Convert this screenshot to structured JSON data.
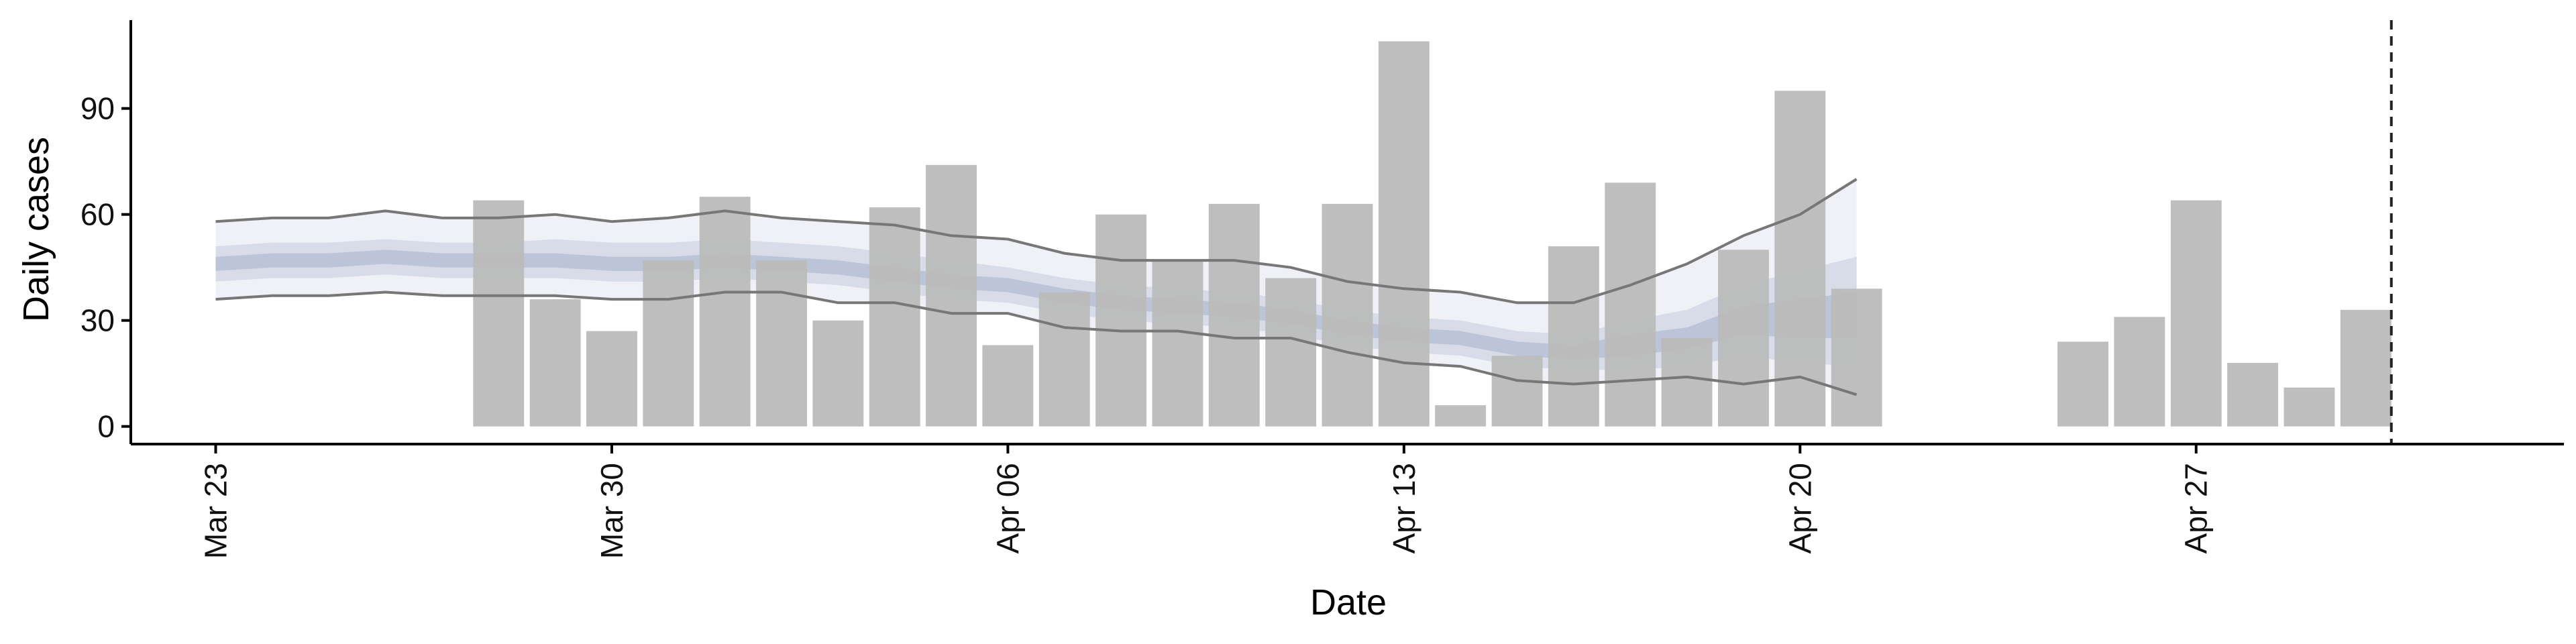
{
  "chart_data": {
    "type": "bar",
    "xlabel": "Date",
    "ylabel": "Daily cases",
    "ylim": [
      -5,
      115
    ],
    "yticks": [
      0,
      30,
      60,
      90
    ],
    "x_dates": [
      "2020-03-22",
      "2020-05-04"
    ],
    "xtick_labels": [
      {
        "date": "2020-03-23",
        "label": "Mar 23"
      },
      {
        "date": "2020-03-30",
        "label": "Mar 30"
      },
      {
        "date": "2020-04-06",
        "label": "Apr 06"
      },
      {
        "date": "2020-04-13",
        "label": "Apr 13"
      },
      {
        "date": "2020-04-20",
        "label": "Apr 20"
      },
      {
        "date": "2020-04-27",
        "label": "Apr 27"
      }
    ],
    "bars": {
      "color": "#bbbbbb",
      "dates": [
        "2020-03-28",
        "2020-03-29",
        "2020-03-30",
        "2020-03-31",
        "2020-04-01",
        "2020-04-02",
        "2020-04-03",
        "2020-04-04",
        "2020-04-05",
        "2020-04-06",
        "2020-04-07",
        "2020-04-08",
        "2020-04-09",
        "2020-04-10",
        "2020-04-11",
        "2020-04-12",
        "2020-04-13",
        "2020-04-14",
        "2020-04-15",
        "2020-04-16",
        "2020-04-17",
        "2020-04-18",
        "2020-04-19",
        "2020-04-20",
        "2020-04-21",
        "2020-04-25",
        "2020-04-26",
        "2020-04-27",
        "2020-04-28",
        "2020-04-29",
        "2020-04-30"
      ],
      "values": [
        64,
        36,
        27,
        47,
        65,
        47,
        30,
        62,
        74,
        23,
        38,
        60,
        47,
        63,
        42,
        63,
        109,
        6,
        20,
        51,
        69,
        25,
        50,
        95,
        39,
        24,
        31,
        64,
        18,
        11,
        33
      ]
    },
    "estimate": {
      "dates": [
        "2020-03-23",
        "2020-03-24",
        "2020-03-25",
        "2020-03-26",
        "2020-03-27",
        "2020-03-28",
        "2020-03-29",
        "2020-03-30",
        "2020-03-31",
        "2020-04-01",
        "2020-04-02",
        "2020-04-03",
        "2020-04-04",
        "2020-04-05",
        "2020-04-06",
        "2020-04-07",
        "2020-04-08",
        "2020-04-09",
        "2020-04-10",
        "2020-04-11",
        "2020-04-12",
        "2020-04-13",
        "2020-04-14",
        "2020-04-15",
        "2020-04-16",
        "2020-04-17",
        "2020-04-18",
        "2020-04-19",
        "2020-04-20",
        "2020-04-21"
      ],
      "upper90": [
        58,
        59,
        59,
        61,
        59,
        59,
        60,
        58,
        59,
        61,
        59,
        58,
        57,
        54,
        53,
        49,
        47,
        47,
        47,
        45,
        41,
        39,
        38,
        35,
        35,
        40,
        46,
        54,
        60,
        70
      ],
      "upper50": [
        51,
        52,
        52,
        53,
        52,
        52,
        53,
        52,
        52,
        53,
        52,
        51,
        49,
        47,
        45,
        42,
        40,
        39,
        38,
        36,
        33,
        31,
        30,
        27,
        26,
        30,
        33,
        40,
        44,
        48
      ],
      "upper20": [
        48,
        49,
        49,
        50,
        49,
        49,
        49,
        48,
        48,
        49,
        48,
        47,
        45,
        43,
        42,
        39,
        37,
        36,
        35,
        33,
        30,
        28,
        27,
        24,
        23,
        26,
        28,
        34,
        36,
        38
      ],
      "lower20": [
        44,
        45,
        45,
        46,
        45,
        45,
        45,
        44,
        44,
        45,
        44,
        43,
        41,
        39,
        38,
        35,
        33,
        32,
        31,
        29,
        26,
        24,
        23,
        20,
        19,
        20,
        22,
        26,
        25,
        25
      ],
      "lower50": [
        41,
        42,
        42,
        43,
        42,
        42,
        42,
        41,
        41,
        42,
        41,
        40,
        38,
        36,
        35,
        32,
        30,
        29,
        28,
        26,
        23,
        21,
        20,
        17,
        16,
        16,
        17,
        20,
        18,
        17
      ],
      "lower90": [
        36,
        37,
        37,
        38,
        37,
        37,
        37,
        36,
        36,
        38,
        38,
        35,
        35,
        32,
        32,
        28,
        27,
        27,
        25,
        25,
        21,
        18,
        17,
        13,
        12,
        13,
        14,
        12,
        14,
        9
      ],
      "band90_color": "#eceef4",
      "band50_color": "#d3d8e6",
      "band20_color": "#b7bfd5",
      "line_color": "#777777"
    },
    "vline": {
      "date": "2020-04-30",
      "position": "right edge of the last bar",
      "style": "dashed"
    },
    "grid": false,
    "legend": "none"
  }
}
